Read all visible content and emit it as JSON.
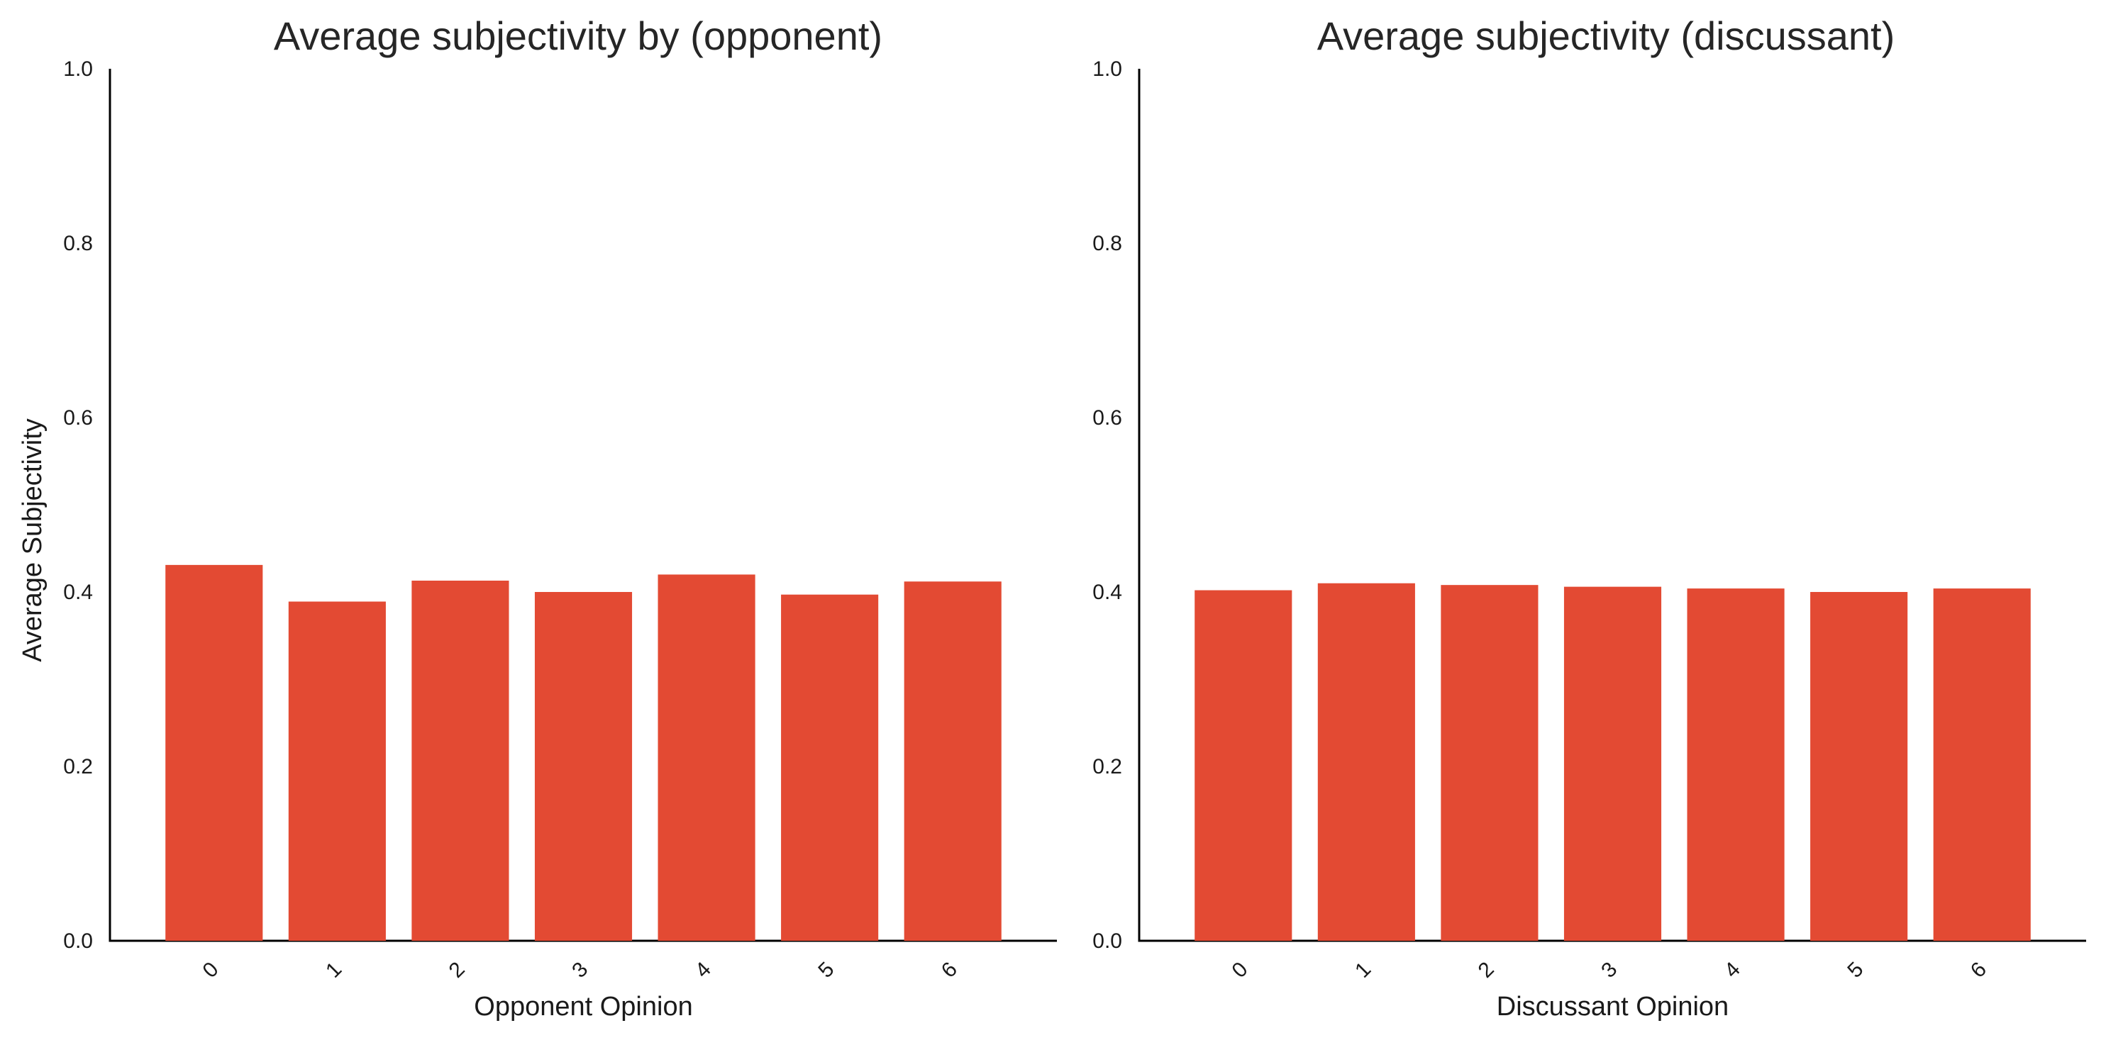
{
  "chart_data": [
    {
      "type": "bar",
      "title": "Average subjectivity by (opponent)",
      "xlabel": "Opponent Opinion",
      "ylabel": "Average Subjectivity",
      "categories": [
        "0",
        "1",
        "2",
        "3",
        "4",
        "5",
        "6"
      ],
      "values": [
        0.431,
        0.389,
        0.413,
        0.4,
        0.42,
        0.397,
        0.412
      ],
      "ylim": [
        0,
        1.0
      ],
      "yticks": [
        "0.0",
        "0.2",
        "0.4",
        "0.6",
        "0.8",
        "1.0"
      ],
      "bar_color": "#e34a33",
      "grid": false,
      "legend": "none"
    },
    {
      "type": "bar",
      "title": "Average subjectivity (discussant)",
      "xlabel": "Discussant Opinion",
      "ylabel": "",
      "categories": [
        "0",
        "1",
        "2",
        "3",
        "4",
        "5",
        "6"
      ],
      "values": [
        0.402,
        0.41,
        0.408,
        0.406,
        0.404,
        0.4,
        0.404
      ],
      "ylim": [
        0,
        1.0
      ],
      "yticks": [
        "0.0",
        "0.2",
        "0.4",
        "0.6",
        "0.8",
        "1.0"
      ],
      "bar_color": "#e34a33",
      "grid": false,
      "legend": "none"
    }
  ]
}
